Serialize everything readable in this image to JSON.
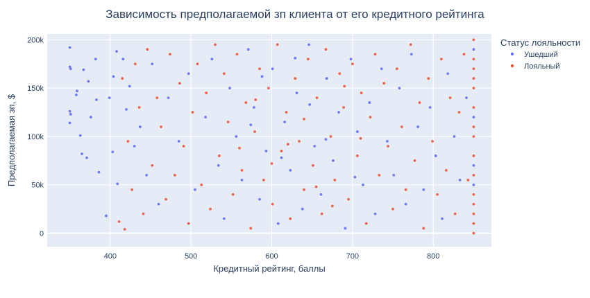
{
  "chart_data": {
    "type": "scatter",
    "title": "Зависимость предполагаемой зп клиента от его кредитного рейтинга",
    "xlabel": "Кредитный рейтинг, баллы",
    "ylabel": "Предполагаемая зп, $",
    "xlim": [
      322,
      872
    ],
    "ylim": [
      -14000,
      206000
    ],
    "xticks": [
      400,
      500,
      600,
      700,
      800
    ],
    "yticks": [
      0,
      50000,
      100000,
      150000,
      200000
    ],
    "ytick_labels": [
      "0",
      "50k",
      "100k",
      "150k",
      "200k"
    ],
    "grid": true,
    "legend": {
      "title": "Статус лояльности",
      "position": "right",
      "entries": [
        "Ушедший",
        "Лояльный"
      ]
    },
    "colors": {
      "Ушедший": "#636efa",
      "Лояльный": "#ef553b"
    },
    "series": [
      {
        "name": "Ушедший",
        "points": [
          [
            350,
            192000
          ],
          [
            350,
            172000
          ],
          [
            351,
            170000
          ],
          [
            350,
            126000
          ],
          [
            351,
            123000
          ],
          [
            350,
            114000
          ],
          [
            358,
            143000
          ],
          [
            359,
            147000
          ],
          [
            363,
            101000
          ],
          [
            365,
            82000
          ],
          [
            367,
            169000
          ],
          [
            371,
            78000
          ],
          [
            373,
            157000
          ],
          [
            376,
            120000
          ],
          [
            382,
            180000
          ],
          [
            383,
            138000
          ],
          [
            386,
            63000
          ],
          [
            395,
            18000
          ],
          [
            399,
            140000
          ],
          [
            403,
            84000
          ],
          [
            404,
            162000
          ],
          [
            408,
            188000
          ],
          [
            409,
            51000
          ],
          [
            416,
            180000
          ],
          [
            420,
            128000
          ],
          [
            424,
            152000
          ],
          [
            430,
            90000
          ],
          [
            437,
            110000
          ],
          [
            445,
            60000
          ],
          [
            452,
            175000
          ],
          [
            460,
            30000
          ],
          [
            472,
            140000
          ],
          [
            485,
            95000
          ],
          [
            497,
            165000
          ],
          [
            505,
            45000
          ],
          [
            518,
            120000
          ],
          [
            526,
            180000
          ],
          [
            534,
            70000
          ],
          [
            541,
            15000
          ],
          [
            548,
            150000
          ],
          [
            556,
            100000
          ],
          [
            563,
            55000
          ],
          [
            571,
            190000
          ],
          [
            578,
            130000
          ],
          [
            585,
            35000
          ],
          [
            593,
            85000
          ],
          [
            601,
            170000
          ],
          [
            608,
            10000
          ],
          [
            616,
            115000
          ],
          [
            623,
            65000
          ],
          [
            631,
            145000
          ],
          [
            638,
            25000
          ],
          [
            646,
            195000
          ],
          [
            653,
            90000
          ],
          [
            661,
            40000
          ],
          [
            668,
            160000
          ],
          [
            676,
            75000
          ],
          [
            683,
            125000
          ],
          [
            691,
            5000
          ],
          [
            698,
            180000
          ],
          [
            706,
            105000
          ],
          [
            713,
            50000
          ],
          [
            721,
            135000
          ],
          [
            728,
            20000
          ],
          [
            736,
            170000
          ],
          [
            743,
            95000
          ],
          [
            751,
            60000
          ],
          [
            758,
            150000
          ],
          [
            766,
            30000
          ],
          [
            773,
            185000
          ],
          [
            781,
            110000
          ],
          [
            788,
            45000
          ],
          [
            796,
            130000
          ],
          [
            803,
            80000
          ],
          [
            811,
            15000
          ],
          [
            818,
            165000
          ],
          [
            826,
            100000
          ],
          [
            833,
            55000
          ],
          [
            841,
            140000
          ],
          [
            850,
            70000
          ],
          [
            850,
            190000
          ],
          [
            850,
            50000
          ],
          [
            850,
            120000
          ],
          [
            612,
            78000
          ],
          [
            647,
            133000
          ],
          [
            588,
            162000
          ],
          [
            703,
            58000
          ],
          [
            667,
            97000
          ],
          [
            629,
            181000
          ],
          [
            574,
            112000
          ]
        ]
      },
      {
        "name": "Лояльный",
        "points": [
          [
            411,
            12000
          ],
          [
            415,
            160000
          ],
          [
            418,
            4000
          ],
          [
            422,
            95000
          ],
          [
            427,
            45000
          ],
          [
            431,
            175000
          ],
          [
            436,
            130000
          ],
          [
            441,
            20000
          ],
          [
            446,
            190000
          ],
          [
            452,
            70000
          ],
          [
            458,
            140000
          ],
          [
            463,
            110000
          ],
          [
            469,
            35000
          ],
          [
            474,
            185000
          ],
          [
            480,
            60000
          ],
          [
            486,
            155000
          ],
          [
            491,
            90000
          ],
          [
            497,
            10000
          ],
          [
            502,
            125000
          ],
          [
            508,
            175000
          ],
          [
            513,
            50000
          ],
          [
            519,
            145000
          ],
          [
            524,
            25000
          ],
          [
            530,
            195000
          ],
          [
            535,
            80000
          ],
          [
            541,
            165000
          ],
          [
            546,
            115000
          ],
          [
            552,
            40000
          ],
          [
            557,
            185000
          ],
          [
            563,
            65000
          ],
          [
            568,
            135000
          ],
          [
            574,
            5000
          ],
          [
            579,
            105000
          ],
          [
            585,
            170000
          ],
          [
            590,
            55000
          ],
          [
            596,
            150000
          ],
          [
            601,
            30000
          ],
          [
            607,
            195000
          ],
          [
            612,
            85000
          ],
          [
            618,
            125000
          ],
          [
            623,
            15000
          ],
          [
            629,
            160000
          ],
          [
            634,
            95000
          ],
          [
            640,
            45000
          ],
          [
            645,
            180000
          ],
          [
            651,
            70000
          ],
          [
            656,
            140000
          ],
          [
            662,
            20000
          ],
          [
            667,
            190000
          ],
          [
            673,
            100000
          ],
          [
            678,
            55000
          ],
          [
            684,
            165000
          ],
          [
            689,
            130000
          ],
          [
            695,
            35000
          ],
          [
            700,
            175000
          ],
          [
            706,
            80000
          ],
          [
            711,
            145000
          ],
          [
            717,
            10000
          ],
          [
            722,
            120000
          ],
          [
            728,
            185000
          ],
          [
            733,
            60000
          ],
          [
            739,
            155000
          ],
          [
            744,
            90000
          ],
          [
            750,
            25000
          ],
          [
            755,
            170000
          ],
          [
            761,
            110000
          ],
          [
            766,
            45000
          ],
          [
            772,
            195000
          ],
          [
            777,
            75000
          ],
          [
            783,
            135000
          ],
          [
            788,
            5000
          ],
          [
            794,
            160000
          ],
          [
            799,
            95000
          ],
          [
            805,
            40000
          ],
          [
            810,
            180000
          ],
          [
            816,
            65000
          ],
          [
            821,
            140000
          ],
          [
            827,
            20000
          ],
          [
            832,
            125000
          ],
          [
            838,
            185000
          ],
          [
            843,
            55000
          ],
          [
            850,
            0
          ],
          [
            850,
            10000
          ],
          [
            850,
            20000
          ],
          [
            850,
            30000
          ],
          [
            850,
            40000
          ],
          [
            850,
            60000
          ],
          [
            850,
            80000
          ],
          [
            850,
            100000
          ],
          [
            850,
            110000
          ],
          [
            850,
            130000
          ],
          [
            850,
            150000
          ],
          [
            850,
            160000
          ],
          [
            850,
            170000
          ],
          [
            850,
            180000
          ],
          [
            850,
            200000
          ],
          [
            620,
            92000
          ],
          [
            655,
            48000
          ],
          [
            690,
            152000
          ],
          [
            580,
            138000
          ],
          [
            710,
            98000
          ],
          [
            640,
            118000
          ],
          [
            600,
            72000
          ],
          [
            675,
            28000
          ],
          [
            560,
            88000
          ]
        ]
      }
    ]
  }
}
